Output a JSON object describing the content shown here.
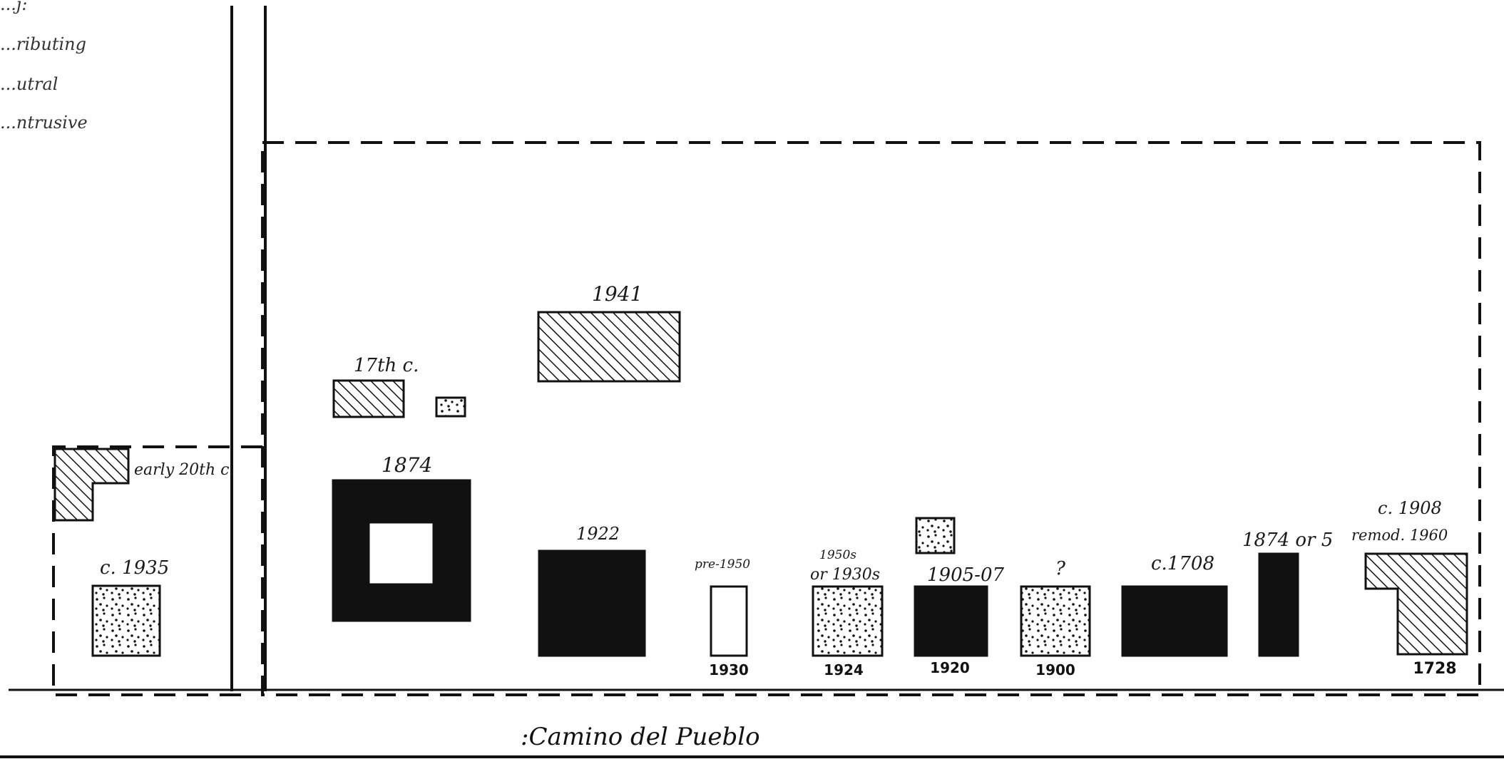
{
  "legend": {
    "items": [
      "...j:",
      "...ributing",
      "...utral",
      "...ntrusive"
    ]
  },
  "street": {
    "name": ":Camino del Pueblo"
  },
  "buildings": [
    {
      "id": "early20",
      "label": "early 20th c.",
      "status": "contributing",
      "fill": "hatch"
    },
    {
      "id": "c1935",
      "label": "c. 1935",
      "status": "neutral",
      "fill": "stipple"
    },
    {
      "id": "b17th",
      "label": "17th c.",
      "status": "contributing",
      "fill": "hatch"
    },
    {
      "id": "small-stipple",
      "label": "",
      "status": "neutral",
      "fill": "stipple"
    },
    {
      "id": "b1941",
      "label": "1941",
      "status": "contributing",
      "fill": "hatch"
    },
    {
      "id": "b1874",
      "label": "1874",
      "status": "significant",
      "fill": "solid"
    },
    {
      "id": "b1922",
      "label": "1922",
      "status": "significant",
      "fill": "solid"
    },
    {
      "id": "pre1950",
      "label": "pre-1950",
      "bottom": "1930",
      "status": "intrusive",
      "fill": "empty"
    },
    {
      "id": "b1950s",
      "label_1": "1950s",
      "label_2": "or 1930s",
      "bottom": "1924",
      "status": "neutral",
      "fill": "stipple"
    },
    {
      "id": "upper-stipple",
      "label": "",
      "status": "neutral",
      "fill": "stipple"
    },
    {
      "id": "b1905",
      "label": "1905-07",
      "bottom": "1920",
      "status": "significant",
      "fill": "solid"
    },
    {
      "id": "bq",
      "label": "?",
      "bottom": "1900",
      "status": "neutral",
      "fill": "stipple"
    },
    {
      "id": "c1708",
      "label": "c.1708",
      "status": "significant",
      "fill": "solid"
    },
    {
      "id": "b1874or5",
      "label": "1874 or 5",
      "status": "significant",
      "fill": "solid"
    },
    {
      "id": "c1908",
      "label_1": "c. 1908",
      "label_2": "remod. 1960",
      "bottom": "1728",
      "status": "contributing",
      "fill": "hatch"
    }
  ],
  "colors": {
    "ink": "#111111",
    "paper": "#fefefe"
  }
}
